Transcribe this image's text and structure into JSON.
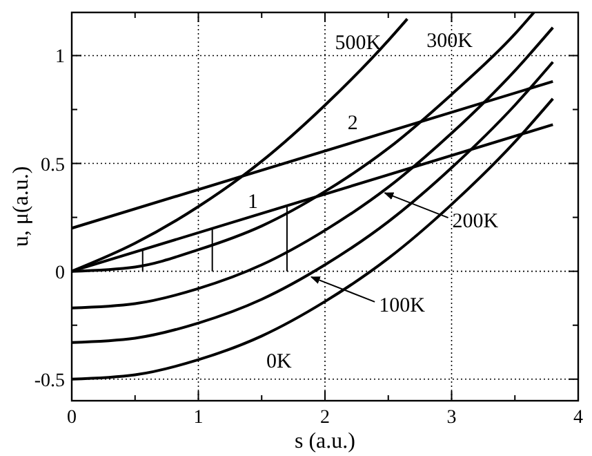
{
  "chart_data": {
    "type": "line",
    "xlabel": "s (a.u.)",
    "ylabel": "u, μ(a.u.)",
    "xlim": [
      0,
      4
    ],
    "ylim": [
      -0.6,
      1.2
    ],
    "xticks": [
      0,
      {
        "value": 0.5,
        "label": null
      },
      1,
      {
        "value": 1.5,
        "label": null
      },
      2,
      {
        "value": 2.5,
        "label": null
      },
      3,
      {
        "value": 3.5,
        "label": null
      },
      4
    ],
    "yticks": [
      -0.5,
      {
        "value": -0.25,
        "label": null
      },
      0,
      {
        "value": 0.25,
        "label": null
      },
      0.5,
      {
        "value": 0.75,
        "label": null
      },
      1
    ],
    "grid": true,
    "marker": "none",
    "line_style": "solid",
    "series": [
      {
        "color": "#000000",
        "x": [
          0,
          0.5,
          1,
          1.5,
          2,
          2.5,
          3,
          3.5,
          3.8
        ],
        "values": [
          -0.5,
          -0.48,
          -0.41,
          -0.3,
          -0.14,
          0.06,
          0.31,
          0.6,
          0.8
        ]
      },
      {
        "color": "#000000",
        "x": [
          0,
          0.5,
          1,
          1.5,
          2,
          2.5,
          3,
          3.5,
          3.8
        ],
        "values": [
          -0.33,
          -0.31,
          -0.24,
          -0.13,
          0.03,
          0.23,
          0.48,
          0.77,
          0.97
        ]
      },
      {
        "color": "#000000",
        "x": [
          0,
          0.5,
          1,
          1.5,
          2,
          2.5,
          3,
          3.5,
          3.8
        ],
        "values": [
          -0.17,
          -0.15,
          -0.08,
          0.03,
          0.19,
          0.39,
          0.64,
          0.93,
          1.13
        ]
      },
      {
        "color": "#000000",
        "x": [
          0,
          0.5,
          1,
          1.5,
          2,
          2.5,
          3,
          3.5,
          3.65
        ],
        "values": [
          0,
          0.02,
          0.1,
          0.21,
          0.37,
          0.57,
          0.82,
          1.1,
          1.2
        ]
      },
      {
        "color": "#000000",
        "x": [
          0,
          0.5,
          1,
          1.5,
          2,
          2.5,
          2.65
        ],
        "values": [
          0,
          0.13,
          0.3,
          0.51,
          0.77,
          1.07,
          1.17
        ]
      },
      {
        "color": "#000000",
        "x": [
          0,
          3.8
        ],
        "values": [
          0,
          0.68
        ]
      },
      {
        "color": "#000000",
        "x": [
          0,
          3.8
        ],
        "values": [
          0.2,
          0.88
        ]
      },
      {
        "color": "#000000",
        "x": [
          0.56,
          0.56
        ],
        "values": [
          0,
          0.1
        ]
      },
      {
        "color": "#000000",
        "x": [
          1.11,
          1.11
        ],
        "values": [
          0,
          0.2
        ]
      },
      {
        "color": "#000000",
        "x": [
          1.7,
          1.7
        ],
        "values": [
          0,
          0.3
        ]
      }
    ],
    "annotations": [
      {
        "text": "500K",
        "x": 2.38,
        "y": 1.0
      },
      {
        "text": "300K",
        "x": 3.3,
        "y": 0.99
      },
      {
        "text": "2",
        "x": 2.22,
        "y": 0.6
      },
      {
        "text": "1",
        "x": 1.43,
        "y": 0.26
      },
      {
        "text": "200K",
        "x": 2.45,
        "y": 0.37
      },
      {
        "text": "100K",
        "x": 1.87,
        "y": -0.02
      },
      {
        "text": "0K",
        "x": 1.55,
        "y": -0.28
      }
    ]
  }
}
